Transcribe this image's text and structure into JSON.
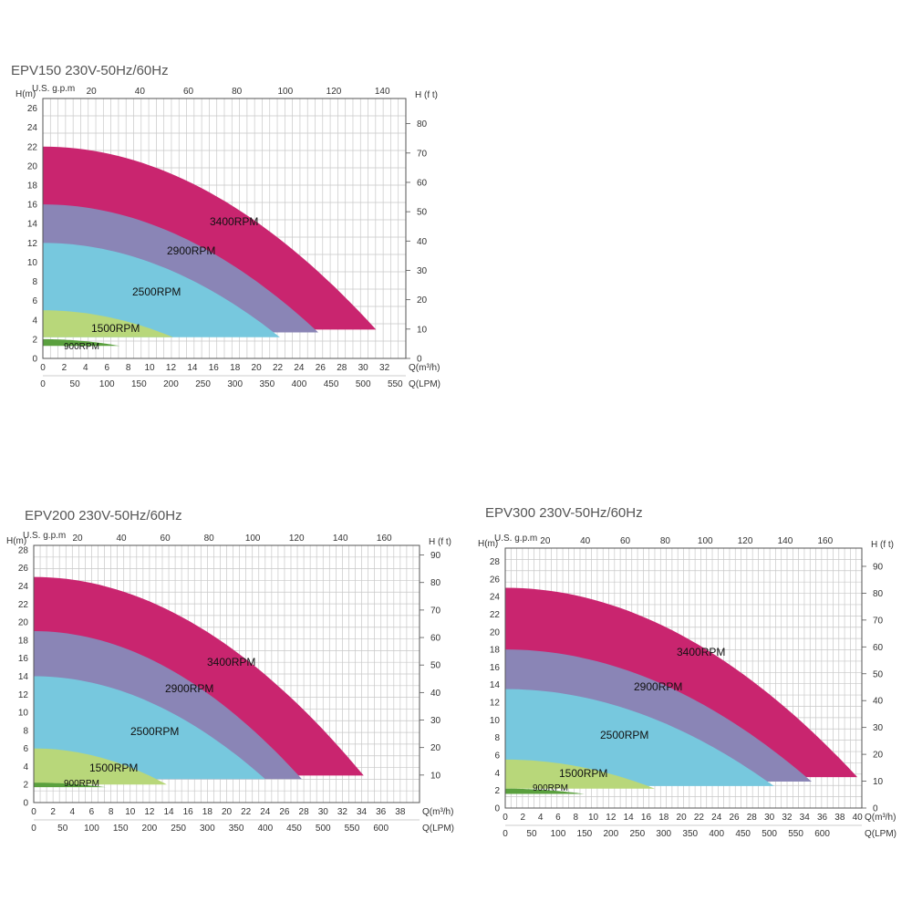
{
  "colors": {
    "3400RPM": "#c9256f",
    "2900RPM": "#8a85b6",
    "2500RPM": "#77c8de",
    "1500RPM": "#b8d77a",
    "900RPM": "#5aa03e",
    "grid": "#c8c8c8",
    "frame": "#555555"
  },
  "chart_data": [
    {
      "type": "area",
      "title": "EPV150 230V-50Hz/60Hz",
      "axes": {
        "left_label": "H(m)",
        "left_ticks": [
          0,
          2,
          4,
          6,
          8,
          10,
          12,
          14,
          16,
          18,
          20,
          22,
          24,
          26
        ],
        "right_label": "H (f t)",
        "right_ticks": [
          0,
          10,
          20,
          30,
          40,
          50,
          60,
          70,
          80
        ],
        "top_label": "U.S. g.p.m",
        "top_ticks": [
          20,
          40,
          60,
          80,
          100,
          120,
          140
        ],
        "bottom1_label": "Q(m³/h)",
        "bottom1_ticks": [
          0,
          2,
          4,
          6,
          8,
          10,
          12,
          14,
          16,
          18,
          20,
          22,
          24,
          26,
          28,
          30,
          32
        ],
        "bottom2_label": "Q(LPM)",
        "bottom2_ticks": [
          0,
          50,
          100,
          150,
          200,
          250,
          300,
          350,
          400,
          450,
          500,
          550
        ]
      },
      "xlim": [
        0,
        34
      ],
      "ylim": [
        0,
        27
      ],
      "grid": true,
      "series": [
        {
          "name": "3400RPM",
          "h0": 22,
          "qmax": 31.2,
          "hend": 3
        },
        {
          "name": "2900RPM",
          "h0": 16,
          "qmax": 25.8,
          "hend": 2.7
        },
        {
          "name": "2500RPM",
          "h0": 12,
          "qmax": 22.2,
          "hend": 2.2
        },
        {
          "name": "1500RPM",
          "h0": 5,
          "qmax": 12.2,
          "hend": 2.2
        },
        {
          "name": "900RPM",
          "h0": 2,
          "qmax": 7.2,
          "hend": 1.3
        }
      ]
    },
    {
      "type": "area",
      "title": "EPV200 230V-50Hz/60Hz",
      "axes": {
        "left_label": "H(m)",
        "left_ticks": [
          0,
          2,
          4,
          6,
          8,
          10,
          12,
          14,
          16,
          18,
          20,
          22,
          24,
          26,
          28
        ],
        "right_label": "H (f t)",
        "right_ticks": [
          10,
          20,
          30,
          40,
          50,
          60,
          70,
          80,
          90
        ],
        "top_label": "U.S. g.p.m",
        "top_ticks": [
          20,
          40,
          60,
          80,
          100,
          120,
          140,
          160
        ],
        "bottom1_label": "Q(m³/h)",
        "bottom1_ticks": [
          0,
          2,
          4,
          6,
          8,
          10,
          12,
          14,
          16,
          18,
          20,
          22,
          24,
          26,
          28,
          30,
          32,
          34,
          36,
          38
        ],
        "bottom2_label": "Q(LPM)",
        "bottom2_ticks": [
          0,
          50,
          100,
          150,
          200,
          250,
          300,
          350,
          400,
          450,
          500,
          550,
          600
        ]
      },
      "xlim": [
        0,
        40
      ],
      "ylim": [
        0,
        28.5
      ],
      "grid": true,
      "series": [
        {
          "name": "3400RPM",
          "h0": 25,
          "qmax": 34.2,
          "hend": 3
        },
        {
          "name": "2900RPM",
          "h0": 19,
          "qmax": 27.8,
          "hend": 2.6
        },
        {
          "name": "2500RPM",
          "h0": 14,
          "qmax": 24,
          "hend": 2.6
        },
        {
          "name": "1500RPM",
          "h0": 6,
          "qmax": 13.8,
          "hend": 2
        },
        {
          "name": "900RPM",
          "h0": 2.2,
          "qmax": 7.5,
          "hend": 1.7
        }
      ]
    },
    {
      "type": "area",
      "title": "EPV300 230V-50Hz/60Hz",
      "axes": {
        "left_label": "H(m)",
        "left_ticks": [
          0,
          2,
          4,
          6,
          8,
          10,
          12,
          14,
          16,
          18,
          20,
          22,
          24,
          26,
          28
        ],
        "right_label": "H (f t)",
        "right_ticks": [
          0,
          10,
          20,
          30,
          40,
          50,
          60,
          70,
          80,
          90
        ],
        "top_label": "U.S. g.p.m",
        "top_ticks": [
          20,
          40,
          60,
          80,
          100,
          120,
          140,
          160
        ],
        "bottom1_label": "Q(m³/h)",
        "bottom1_ticks": [
          0,
          2,
          4,
          6,
          8,
          10,
          12,
          14,
          16,
          18,
          20,
          22,
          24,
          26,
          28,
          30,
          32,
          34,
          36,
          38,
          40
        ],
        "bottom2_label": "Q(LPM)",
        "bottom2_ticks": [
          0,
          50,
          100,
          150,
          200,
          250,
          300,
          350,
          400,
          450,
          500,
          550,
          600
        ]
      },
      "xlim": [
        0,
        40.5
      ],
      "ylim": [
        0,
        29.5
      ],
      "grid": true,
      "series": [
        {
          "name": "3400RPM",
          "h0": 25,
          "qmax": 40,
          "hend": 3.5
        },
        {
          "name": "2900RPM",
          "h0": 18,
          "qmax": 34.8,
          "hend": 3
        },
        {
          "name": "2500RPM",
          "h0": 13.5,
          "qmax": 30.5,
          "hend": 2.5
        },
        {
          "name": "1500RPM",
          "h0": 5.5,
          "qmax": 17,
          "hend": 2.2
        },
        {
          "name": "900RPM",
          "h0": 2.2,
          "qmax": 9,
          "hend": 1.6
        }
      ]
    }
  ]
}
